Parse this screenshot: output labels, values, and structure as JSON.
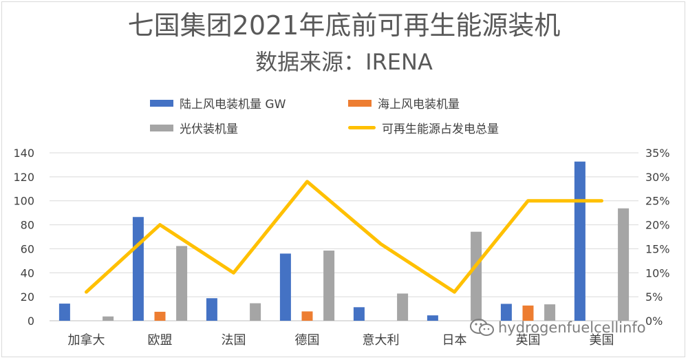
{
  "title": "七国集团2021年底前可再生能源装机",
  "subtitle": "数据来源：IRENA",
  "watermark": "hydrogenfuelcellinfo",
  "chart_data": {
    "type": "bar",
    "title": "七国集团2021年底前可再生能源装机",
    "subtitle": "数据来源：IRENA",
    "categories": [
      "加拿大",
      "欧盟",
      "法国",
      "德国",
      "意大利",
      "日本",
      "英国",
      "美国"
    ],
    "series": [
      {
        "name": "陆上风电装机量 GW",
        "type": "bar",
        "axis": "left",
        "color": "#4472c4",
        "values": [
          14.3,
          86.5,
          18.8,
          56,
          11.3,
          4.5,
          14.1,
          132.7
        ]
      },
      {
        "name": "海上风电装机量",
        "type": "bar",
        "axis": "left",
        "color": "#ed7d31",
        "values": [
          0,
          7.5,
          0,
          7.8,
          0,
          0,
          12.7,
          0
        ]
      },
      {
        "name": "光伏装机量",
        "type": "bar",
        "axis": "left",
        "color": "#a5a5a5",
        "values": [
          3.6,
          62.3,
          14.6,
          58.5,
          22.7,
          74.2,
          13.7,
          93.7
        ]
      },
      {
        "name": "可再生能源占发电总量",
        "type": "line",
        "axis": "right",
        "color": "#ffc000",
        "values": [
          0.06,
          0.2,
          0.1,
          0.29,
          0.16,
          0.06,
          0.25,
          0.25
        ]
      }
    ],
    "yaxis_left": {
      "min": 0,
      "max": 140,
      "ticks": [
        "0",
        "20",
        "40",
        "60",
        "80",
        "100",
        "120",
        "140"
      ]
    },
    "yaxis_right": {
      "min": 0,
      "max": 0.35,
      "ticks": [
        "0%",
        "5%",
        "10%",
        "15%",
        "20%",
        "25%",
        "30%",
        "35%"
      ]
    },
    "grid": true,
    "legend_position": "top"
  }
}
